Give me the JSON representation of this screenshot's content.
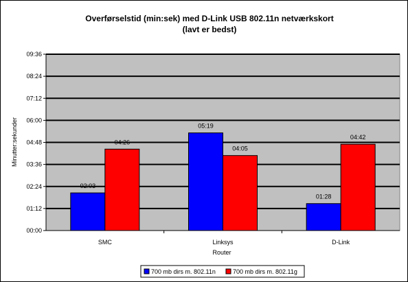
{
  "chart_data": {
    "type": "bar",
    "title_line1": "Overførselstid (min:sek) med D-Link USB 802.11n netværkskort",
    "title_line2": "(lavt er bedst)",
    "xlabel": "Router",
    "ylabel": "Minutter:sekunder",
    "categories": [
      "SMC",
      "Linksys",
      "D-Link"
    ],
    "y_unit": "seconds",
    "ylim": [
      0,
      576
    ],
    "yticks": [
      0,
      72,
      144,
      216,
      288,
      360,
      432,
      504,
      576
    ],
    "ytick_labels": [
      "00:00",
      "01:12",
      "02:24",
      "03:36",
      "04:48",
      "06:00",
      "07:12",
      "08:24",
      "09:36"
    ],
    "series": [
      {
        "name": "700 mb dirs m. 802.11n",
        "color": "#0000ff",
        "values": [
          123,
          319,
          88
        ],
        "labels": [
          "02:03",
          "05:19",
          "01:28"
        ]
      },
      {
        "name": "700 mb dirs m. 802.11g",
        "color": "#ff0000",
        "values": [
          266,
          245,
          282
        ],
        "labels": [
          "04:26",
          "04:05",
          "04:42"
        ]
      }
    ],
    "plot_background": "#c0c0c0",
    "grid": true,
    "legend_position": "bottom"
  }
}
